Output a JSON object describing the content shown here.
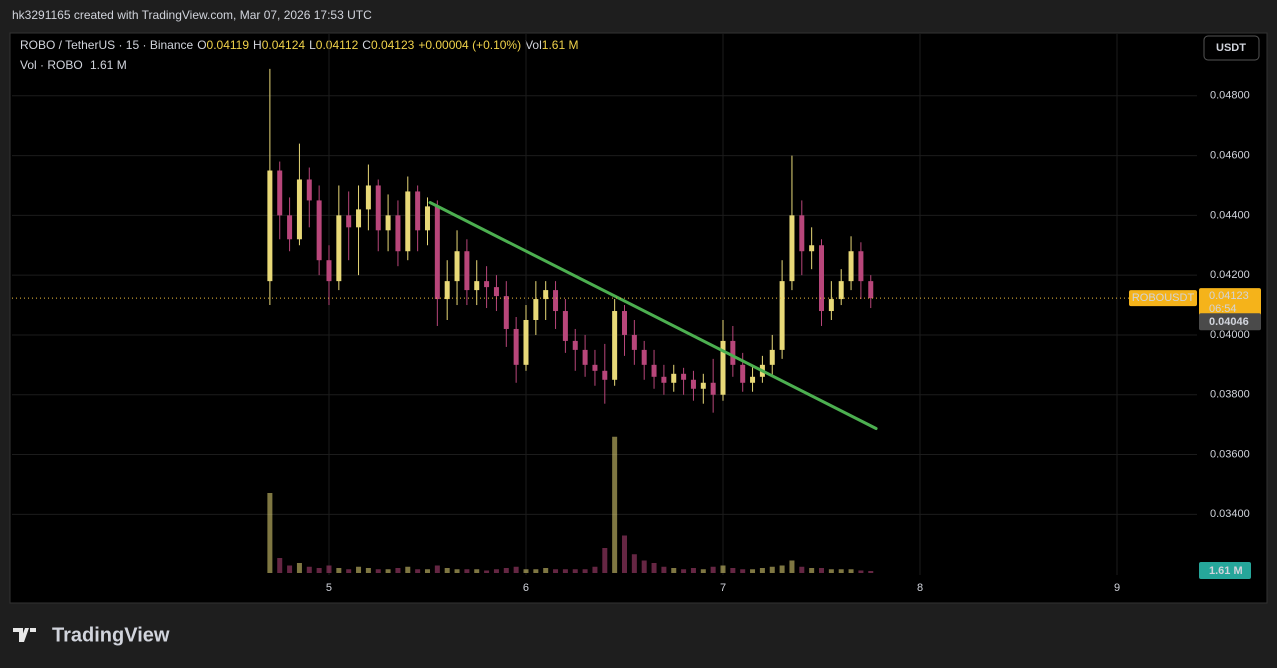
{
  "header": {
    "text": "hk3291165 created with TradingView.com, Mar 07, 2026 17:53 UTC"
  },
  "legend": {
    "symbol": "ROBO / TetherUS · 15 · Binance",
    "o_label": "O",
    "open": 0.04119,
    "h_label": "H",
    "high": 0.04124,
    "l_label": "L",
    "low": 0.04112,
    "c_label": "C",
    "close": 0.04123,
    "change": "+0.00004 (+0.10%)",
    "vol_label": "Vol",
    "vol": "1.61 M",
    "vol_pane": "Vol · ROBO",
    "vol_pane_value": "1.61 M"
  },
  "currency_button": "USDT",
  "footer": {
    "brand": "TradingView"
  },
  "chart_data": {
    "type": "candlestick",
    "bull_color": "#e8d978",
    "bear_color": "#b8467a",
    "xlim": [
      3.391,
      9.406
    ],
    "xticks": [
      5,
      6,
      7,
      8,
      9
    ],
    "ylim": [
      0.03197,
      0.0501
    ],
    "yticks": [
      {
        "value": 0.034,
        "label": "0.03400"
      },
      {
        "value": 0.036,
        "label": "0.03600"
      },
      {
        "value": 0.038,
        "label": "0.03800"
      },
      {
        "value": 0.04,
        "label": "0.04000"
      },
      {
        "value": 0.042,
        "label": "0.04200"
      },
      {
        "value": 0.044,
        "label": "0.04400"
      },
      {
        "value": 0.046,
        "label": "0.04600"
      },
      {
        "value": 0.048,
        "label": "0.04800"
      }
    ],
    "grid": true,
    "x": [
      4.7,
      4.75,
      4.8,
      4.85,
      4.9,
      4.95,
      5.0,
      5.05,
      5.1,
      5.15,
      5.2,
      5.25,
      5.3,
      5.35,
      5.4,
      5.45,
      5.5,
      5.55,
      5.6,
      5.65,
      5.7,
      5.75,
      5.8,
      5.85,
      5.9,
      5.95,
      6.0,
      6.05,
      6.1,
      6.15,
      6.2,
      6.25,
      6.3,
      6.35,
      6.4,
      6.45,
      6.5,
      6.55,
      6.6,
      6.65,
      6.7,
      6.75,
      6.8,
      6.85,
      6.9,
      6.95,
      7.0,
      7.05,
      7.1,
      7.15,
      7.2,
      7.25,
      7.3,
      7.35,
      7.4,
      7.45,
      7.5,
      7.55,
      7.6,
      7.65,
      7.7,
      7.75
    ],
    "open": [
      0.0418,
      0.0455,
      0.044,
      0.0432,
      0.0452,
      0.0445,
      0.0425,
      0.0418,
      0.044,
      0.0436,
      0.0442,
      0.045,
      0.0435,
      0.044,
      0.0428,
      0.0448,
      0.0435,
      0.0443,
      0.0412,
      0.0418,
      0.0428,
      0.0415,
      0.0418,
      0.0416,
      0.0413,
      0.0402,
      0.039,
      0.0405,
      0.0412,
      0.0415,
      0.0408,
      0.0398,
      0.0395,
      0.039,
      0.0388,
      0.0385,
      0.0408,
      0.04,
      0.0395,
      0.039,
      0.0386,
      0.0384,
      0.0387,
      0.0385,
      0.0382,
      0.0384,
      0.038,
      0.0398,
      0.039,
      0.0384,
      0.0386,
      0.039,
      0.0395,
      0.0418,
      0.044,
      0.0428,
      0.043,
      0.0408,
      0.0412,
      0.0418,
      0.0428,
      0.0418
    ],
    "high": [
      0.0489,
      0.0458,
      0.0446,
      0.0464,
      0.0456,
      0.045,
      0.043,
      0.045,
      0.0448,
      0.045,
      0.0457,
      0.0452,
      0.0447,
      0.0445,
      0.0453,
      0.045,
      0.0446,
      0.0445,
      0.0425,
      0.0435,
      0.0432,
      0.0425,
      0.0423,
      0.042,
      0.0418,
      0.0406,
      0.041,
      0.0418,
      0.0418,
      0.0418,
      0.0412,
      0.0402,
      0.04,
      0.0395,
      0.0397,
      0.0412,
      0.041,
      0.0405,
      0.0398,
      0.0395,
      0.039,
      0.039,
      0.0389,
      0.0388,
      0.0387,
      0.0392,
      0.0405,
      0.0403,
      0.0394,
      0.039,
      0.0393,
      0.04,
      0.0425,
      0.046,
      0.0445,
      0.0436,
      0.0432,
      0.0418,
      0.0422,
      0.0433,
      0.0431,
      0.042
    ],
    "low": [
      0.041,
      0.0432,
      0.0428,
      0.043,
      0.0436,
      0.042,
      0.041,
      0.0415,
      0.0425,
      0.042,
      0.0435,
      0.0428,
      0.0428,
      0.0423,
      0.0425,
      0.0428,
      0.043,
      0.0403,
      0.0405,
      0.041,
      0.041,
      0.041,
      0.0409,
      0.0408,
      0.0396,
      0.0384,
      0.0388,
      0.04,
      0.0405,
      0.0402,
      0.0394,
      0.0388,
      0.0386,
      0.0383,
      0.0377,
      0.0383,
      0.0393,
      0.039,
      0.0385,
      0.0382,
      0.038,
      0.0381,
      0.038,
      0.0378,
      0.0377,
      0.0374,
      0.0378,
      0.0386,
      0.0381,
      0.0381,
      0.0384,
      0.0386,
      0.0392,
      0.0415,
      0.042,
      0.0422,
      0.0403,
      0.0405,
      0.041,
      0.0415,
      0.0412,
      0.0409
    ],
    "close": [
      0.0455,
      0.044,
      0.0432,
      0.0452,
      0.0445,
      0.0425,
      0.0418,
      0.044,
      0.0436,
      0.0442,
      0.045,
      0.0435,
      0.044,
      0.0428,
      0.0448,
      0.0435,
      0.0443,
      0.0412,
      0.0418,
      0.0428,
      0.0415,
      0.0418,
      0.0416,
      0.0413,
      0.0402,
      0.039,
      0.0405,
      0.0412,
      0.0415,
      0.0408,
      0.0398,
      0.0395,
      0.039,
      0.0388,
      0.0385,
      0.0408,
      0.04,
      0.0395,
      0.039,
      0.0386,
      0.0384,
      0.0387,
      0.0385,
      0.0382,
      0.0384,
      0.038,
      0.0398,
      0.039,
      0.0384,
      0.0386,
      0.039,
      0.0395,
      0.0418,
      0.044,
      0.0428,
      0.043,
      0.0408,
      0.0412,
      0.0418,
      0.0428,
      0.0418,
      0.04123
    ],
    "volume": [
      64,
      12,
      6,
      8,
      5,
      4,
      6,
      4,
      3,
      5,
      4,
      3,
      3,
      4,
      5,
      3,
      3,
      6,
      4,
      3,
      3,
      3,
      2,
      3,
      4,
      5,
      3,
      3,
      4,
      3,
      3,
      3,
      3,
      5,
      20,
      109,
      30,
      15,
      10,
      8,
      5,
      4,
      3,
      4,
      3,
      5,
      6,
      4,
      3,
      3,
      4,
      5,
      6,
      10,
      5,
      4,
      4,
      3,
      3,
      3,
      2,
      1.61
    ],
    "vlim": [
      0,
      120
    ],
    "volume_label": "1.61 M",
    "trendline": {
      "x": [
        5.513,
        7.777
      ],
      "y": [
        0.04443,
        0.03687
      ],
      "color": "#4caf50"
    },
    "price_line": {
      "value": 0.04123,
      "symbol": "ROBOUSDT",
      "countdown": "06:54"
    },
    "level_label": 0.04046
  }
}
